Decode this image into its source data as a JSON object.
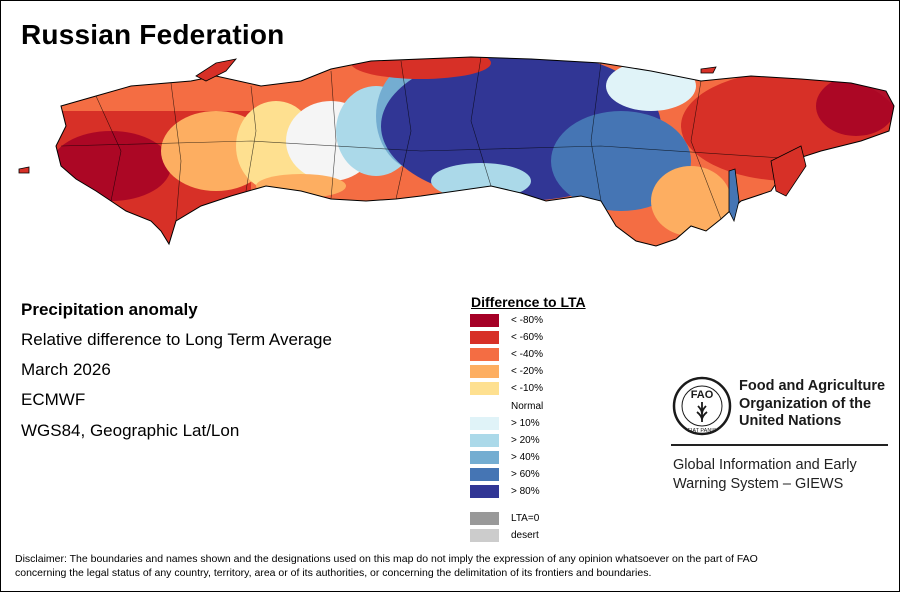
{
  "title": "Russian Federation",
  "info": {
    "line1": "Precipitation anomaly",
    "line2": "Relative difference to Long Term Average",
    "line3": "March 2026",
    "line4": "ECMWF",
    "line5": "WGS84, Geographic Lat/Lon"
  },
  "legend": {
    "title": "Difference to LTA",
    "items": [
      {
        "label": "< -80%",
        "color": "#a50026"
      },
      {
        "label": "< -60%",
        "color": "#d73027"
      },
      {
        "label": "< -40%",
        "color": "#f46d43"
      },
      {
        "label": "< -20%",
        "color": "#fdae61"
      },
      {
        "label": "< -10%",
        "color": "#fee090"
      },
      {
        "label": "> 10%",
        "color": "#e0f3f8"
      },
      {
        "label": "> 20%",
        "color": "#abd9e9"
      },
      {
        "label": "> 40%",
        "color": "#74add1"
      },
      {
        "label": "> 60%",
        "color": "#4575b4"
      },
      {
        "label": "> 80%",
        "color": "#313695"
      },
      {
        "label": "LTA=0",
        "color": "#999999"
      },
      {
        "label": "desert",
        "color": "#cccccc"
      }
    ],
    "normal_label": "Normal"
  },
  "fao": {
    "org_line1": "Food and Agriculture",
    "org_line2": "Organization of the",
    "org_line3": "United Nations",
    "logo_text": "FAO",
    "motto": "FIAT PANIS",
    "giews_line1": "Global Information and Early",
    "giews_line2": "Warning System – GIEWS"
  },
  "disclaimer_line1": "Disclaimer: The boundaries and names shown and the designations used on this map do not imply the expression of any opinion whatsoever on the part of FAO",
  "disclaimer_line2": "concerning the legal status of any country, territory, area or of its authorities, or concerning the delimitation of its frontiers and boundaries.",
  "palette": {
    "neutral": "#f5f5f5",
    "border": "#000000"
  }
}
